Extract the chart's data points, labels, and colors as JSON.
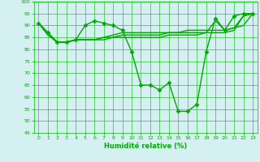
{
  "xlabel": "Humidité relative (%)",
  "background_color": "#d4f0f0",
  "grid_color": "#00bb00",
  "line_color": "#00aa00",
  "xlim": [
    -0.5,
    23.5
  ],
  "ylim": [
    45,
    100
  ],
  "yticks": [
    45,
    50,
    55,
    60,
    65,
    70,
    75,
    80,
    85,
    90,
    95,
    100
  ],
  "xticks": [
    0,
    1,
    2,
    3,
    4,
    5,
    6,
    7,
    8,
    9,
    10,
    11,
    12,
    13,
    14,
    15,
    16,
    17,
    18,
    19,
    20,
    21,
    22,
    23
  ],
  "series": [
    [
      91,
      87,
      83,
      83,
      84,
      90,
      92,
      91,
      90,
      88,
      79,
      65,
      65,
      63,
      66,
      54,
      54,
      57,
      79,
      93,
      88,
      94,
      95,
      95
    ],
    [
      91,
      87,
      83,
      83,
      84,
      84,
      84,
      85,
      86,
      87,
      87,
      87,
      87,
      87,
      87,
      87,
      88,
      88,
      88,
      88,
      88,
      89,
      90,
      95
    ],
    [
      91,
      87,
      83,
      83,
      84,
      84,
      84,
      85,
      85,
      86,
      86,
      86,
      86,
      86,
      87,
      87,
      87,
      87,
      87,
      92,
      88,
      89,
      94,
      95
    ],
    [
      91,
      86,
      83,
      83,
      84,
      84,
      84,
      84,
      85,
      85,
      85,
      85,
      85,
      85,
      86,
      86,
      86,
      86,
      87,
      87,
      87,
      88,
      94,
      95
    ]
  ],
  "marker": "D",
  "markersize": 2.5,
  "linewidth": 1.0
}
